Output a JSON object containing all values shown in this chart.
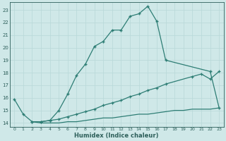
{
  "xlabel": "Humidex (Indice chaleur)",
  "line1_x": [
    0,
    1,
    2,
    3,
    4,
    5,
    6,
    7,
    8,
    9,
    10,
    11,
    12,
    13,
    14,
    15,
    16,
    17,
    22,
    23
  ],
  "line1_y": [
    15.9,
    14.7,
    14.1,
    14.1,
    14.2,
    15.0,
    16.3,
    17.8,
    18.7,
    20.1,
    20.5,
    21.4,
    21.4,
    22.5,
    22.7,
    23.3,
    22.1,
    19.0,
    18.1,
    15.2
  ],
  "line2_x": [
    2,
    3,
    4,
    5,
    6,
    7,
    8,
    9,
    10,
    11,
    12,
    13,
    14,
    15,
    16,
    17,
    20,
    21,
    22,
    23
  ],
  "line2_y": [
    14.1,
    14.1,
    14.2,
    14.3,
    14.5,
    14.7,
    14.9,
    15.1,
    15.4,
    15.6,
    15.8,
    16.1,
    16.3,
    16.6,
    16.8,
    17.1,
    17.7,
    17.9,
    17.5,
    18.1
  ],
  "line3_x": [
    2,
    3,
    4,
    5,
    6,
    7,
    8,
    9,
    10,
    11,
    12,
    13,
    14,
    15,
    16,
    17,
    18,
    19,
    20,
    21,
    22,
    23
  ],
  "line3_y": [
    14.1,
    14.0,
    14.0,
    14.0,
    14.1,
    14.1,
    14.2,
    14.3,
    14.4,
    14.4,
    14.5,
    14.6,
    14.7,
    14.7,
    14.8,
    14.9,
    15.0,
    15.0,
    15.1,
    15.1,
    15.1,
    15.2
  ],
  "line_color": "#2d7d74",
  "bg_color": "#cfe8e8",
  "grid_color": "#b8d8d8",
  "text_color": "#2d5f5a",
  "ylim": [
    13.7,
    23.6
  ],
  "xlim": [
    -0.5,
    23.5
  ],
  "yticks": [
    14,
    15,
    16,
    17,
    18,
    19,
    20,
    21,
    22,
    23
  ],
  "xticks": [
    0,
    1,
    2,
    3,
    4,
    5,
    6,
    7,
    8,
    9,
    10,
    11,
    12,
    13,
    14,
    15,
    16,
    17,
    18,
    19,
    20,
    21,
    22,
    23
  ]
}
